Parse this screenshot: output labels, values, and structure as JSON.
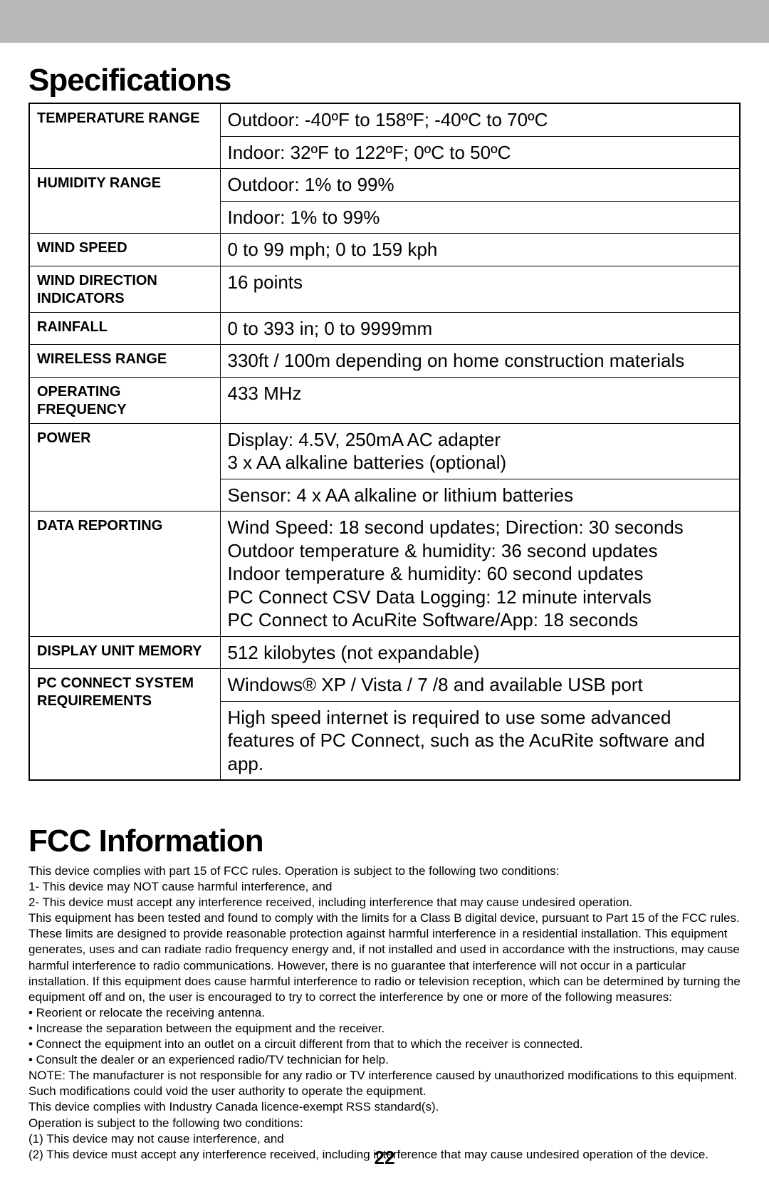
{
  "page_number": "22",
  "specifications": {
    "title": "Specifications",
    "rows": [
      {
        "label": "TEMPERATURE RANGE",
        "value": "Outdoor: -40ºF to 158ºF; -40ºC to 70ºC",
        "rowspan": 2
      },
      {
        "label": "",
        "value": "Indoor: 32ºF to 122ºF; 0ºC to 50ºC",
        "cont": true
      },
      {
        "label": "HUMIDITY RANGE",
        "value": "Outdoor: 1% to 99%",
        "rowspan": 2
      },
      {
        "label": "",
        "value": "Indoor: 1% to 99%",
        "cont": true
      },
      {
        "label": "WIND SPEED",
        "value": "0 to 99 mph; 0 to 159 kph"
      },
      {
        "label": "WIND DIRECTION INDICATORS",
        "value": "16 points"
      },
      {
        "label": "RAINFALL",
        "value": "0 to 393 in; 0 to 9999mm"
      },
      {
        "label": "WIRELESS RANGE",
        "value": "330ft / 100m depending on home construction materials"
      },
      {
        "label": "OPERATING FREQUENCY",
        "value": "433 MHz"
      },
      {
        "label": "POWER",
        "value": "Display: 4.5V, 250mA AC adapter\n3 x AA alkaline batteries (optional)",
        "rowspan": 2
      },
      {
        "label": "",
        "value": "Sensor: 4 x AA alkaline or lithium batteries",
        "cont": true
      },
      {
        "label": "DATA REPORTING",
        "value": "Wind Speed: 18 second updates; Direction: 30 seconds\nOutdoor temperature & humidity: 36 second updates\nIndoor temperature & humidity: 60 second updates\nPC Connect CSV Data Logging: 12 minute intervals\nPC Connect to AcuRite Software/App: 18 seconds"
      },
      {
        "label": "DISPLAY UNIT MEMORY",
        "value": "512 kilobytes (not expandable)"
      },
      {
        "label": "PC CONNECT SYSTEM REQUIREMENTS",
        "value": "Windows® XP / Vista / 7 /8 and available USB port",
        "rowspan": 2
      },
      {
        "label": "",
        "value": "High speed internet is required to use some advanced features of PC Connect, such as the AcuRite software and app.",
        "cont": true,
        "last": true
      }
    ]
  },
  "fcc": {
    "title": "FCC Information",
    "lines": [
      "This device complies with part 15 of FCC rules. Operation is subject to the following two conditions:",
      "1- This device may NOT cause harmful interference, and",
      "2- This device must accept any interference received, including interference that may cause undesired operation.",
      "This equipment has been tested and found to comply with the limits for a Class B digital device, pursuant to Part 15 of the FCC rules. These limits are designed to provide reasonable protection against harmful interference in a residential installation. This equipment generates, uses and can radiate radio frequency energy and, if not installed and used in accordance with the instructions, may cause harmful interference to radio communications. However, there is no guarantee that interference will not occur in a particular installation. If this equipment does cause harmful interference to radio or television reception, which can be determined by turning the equipment off and on, the user is encouraged to try to correct the interference by one or more of the following measures:",
      "• Reorient or relocate the receiving antenna.",
      "• Increase the separation between the equipment and the receiver.",
      "• Connect the equipment into an outlet on a circuit different from that to which the receiver is connected.",
      "• Consult the dealer or an experienced radio/TV technician for help.",
      "NOTE: The manufacturer is not responsible for any radio or TV interference caused by unauthorized modifications to this equipment. Such modifications could void the user authority to operate the equipment.",
      "This device complies with Industry Canada licence-exempt RSS standard(s).",
      "Operation is subject to the following two conditions:",
      "(1) This device may not cause interference, and",
      "(2) This device must accept any interference received, including interference that may cause undesired operation of the device."
    ]
  }
}
